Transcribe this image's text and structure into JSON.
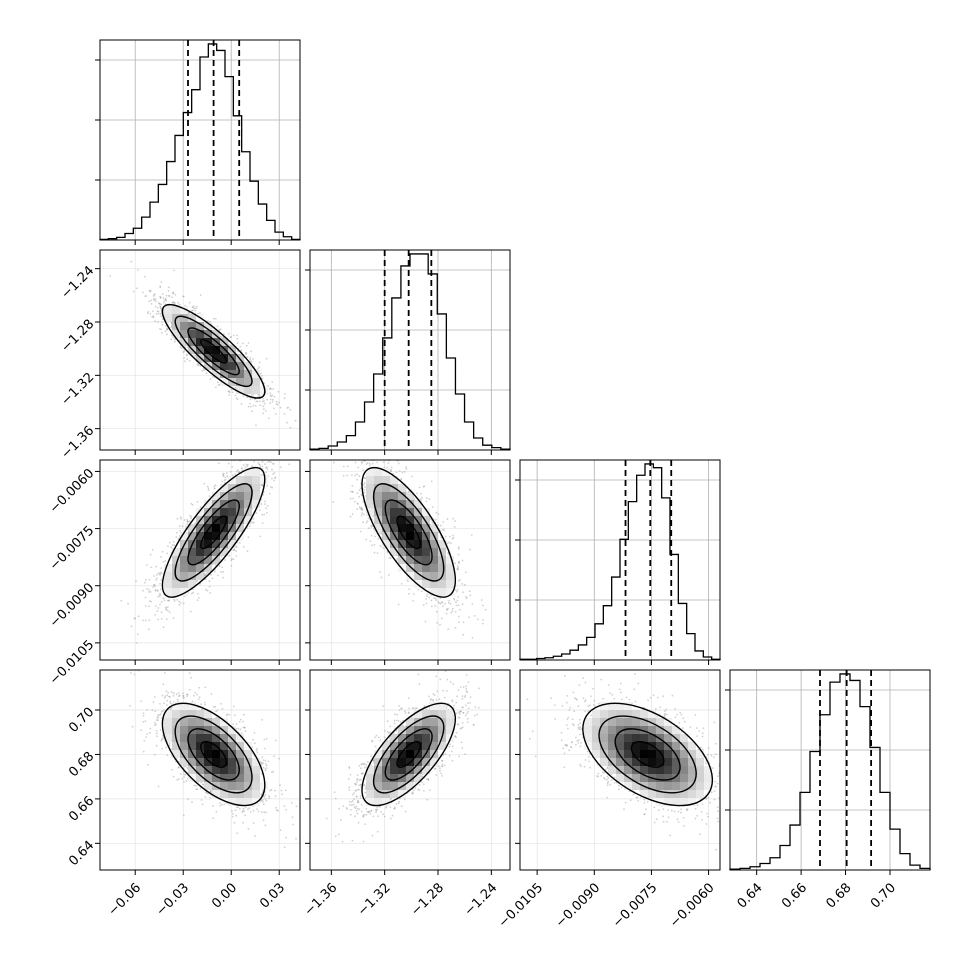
{
  "chart_data": {
    "type": "scatter",
    "title": "",
    "parameters": [
      {
        "ticks": [
          -0.06,
          -0.03,
          0.0,
          0.03
        ],
        "tick_labels": [
          "−0.06",
          "−0.03",
          "0.00",
          "0.03"
        ],
        "range": [
          -0.082,
          0.043
        ],
        "quantiles": [
          -0.027,
          -0.011,
          0.005
        ]
      },
      {
        "ticks": [
          -1.36,
          -1.32,
          -1.28,
          -1.24
        ],
        "tick_labels": [
          "−1.36",
          "−1.32",
          "−1.28",
          "−1.24"
        ],
        "range": [
          -1.376,
          -1.226
        ],
        "quantiles": [
          -1.32,
          -1.302,
          -1.285
        ]
      },
      {
        "ticks": [
          -0.0105,
          -0.009,
          -0.0075,
          -0.006
        ],
        "tick_labels": [
          "−0.0105",
          "−0.0090",
          "−0.0075",
          "−0.0060"
        ],
        "range": [
          -0.01095,
          -0.0057
        ],
        "quantiles": [
          -0.00818,
          -0.00753,
          -0.00698
        ]
      },
      {
        "ticks": [
          0.64,
          0.66,
          0.68,
          0.7
        ],
        "tick_labels": [
          "0.64",
          "0.66",
          "0.68",
          "0.70"
        ],
        "range": [
          0.628,
          0.718
        ],
        "quantiles": [
          0.6685,
          0.6805,
          0.6915
        ]
      }
    ],
    "marginals": [
      [
        1,
        2,
        4,
        10,
        18,
        35,
        58,
        85,
        120,
        160,
        195,
        230,
        280,
        300,
        290,
        250,
        190,
        135,
        90,
        55,
        30,
        12,
        5,
        1
      ],
      [
        1,
        2,
        5,
        10,
        18,
        35,
        60,
        95,
        140,
        190,
        230,
        245,
        245,
        220,
        170,
        115,
        70,
        35,
        15,
        6,
        3,
        1
      ],
      [
        1,
        1,
        2,
        3,
        5,
        8,
        13,
        20,
        30,
        48,
        72,
        110,
        160,
        210,
        245,
        260,
        255,
        215,
        140,
        75,
        35,
        12,
        4,
        1
      ],
      [
        1,
        2,
        4,
        8,
        15,
        30,
        55,
        95,
        145,
        190,
        230,
        240,
        232,
        200,
        150,
        95,
        50,
        20,
        6,
        2
      ]
    ],
    "pairs": [
      {
        "x": 0,
        "y": 1,
        "mean": [
          -0.011,
          -1.302
        ],
        "sd": [
          0.016,
          0.0175
        ],
        "rho": -0.86
      },
      {
        "x": 0,
        "y": 2,
        "mean": [
          -0.011,
          -0.0076
        ],
        "sd": [
          0.016,
          0.00085
        ],
        "rho": 0.82
      },
      {
        "x": 1,
        "y": 2,
        "mean": [
          -1.302,
          -0.0076
        ],
        "sd": [
          0.0175,
          0.00085
        ],
        "rho": -0.74
      },
      {
        "x": 0,
        "y": 3,
        "mean": [
          -0.011,
          0.68
        ],
        "sd": [
          0.016,
          0.0115
        ],
        "rho": -0.6
      },
      {
        "x": 1,
        "y": 3,
        "mean": [
          -1.302,
          0.68
        ],
        "sd": [
          0.0175,
          0.0115
        ],
        "rho": 0.7
      },
      {
        "x": 2,
        "y": 3,
        "mean": [
          -0.0076,
          0.68
        ],
        "sd": [
          0.00085,
          0.0115
        ],
        "rho": -0.5
      }
    ],
    "colors": {
      "points": "#9a9a9a",
      "lines": "#000000",
      "grid": "#b0b0b0"
    },
    "grid": true,
    "xlabel": "",
    "ylabel": ""
  }
}
